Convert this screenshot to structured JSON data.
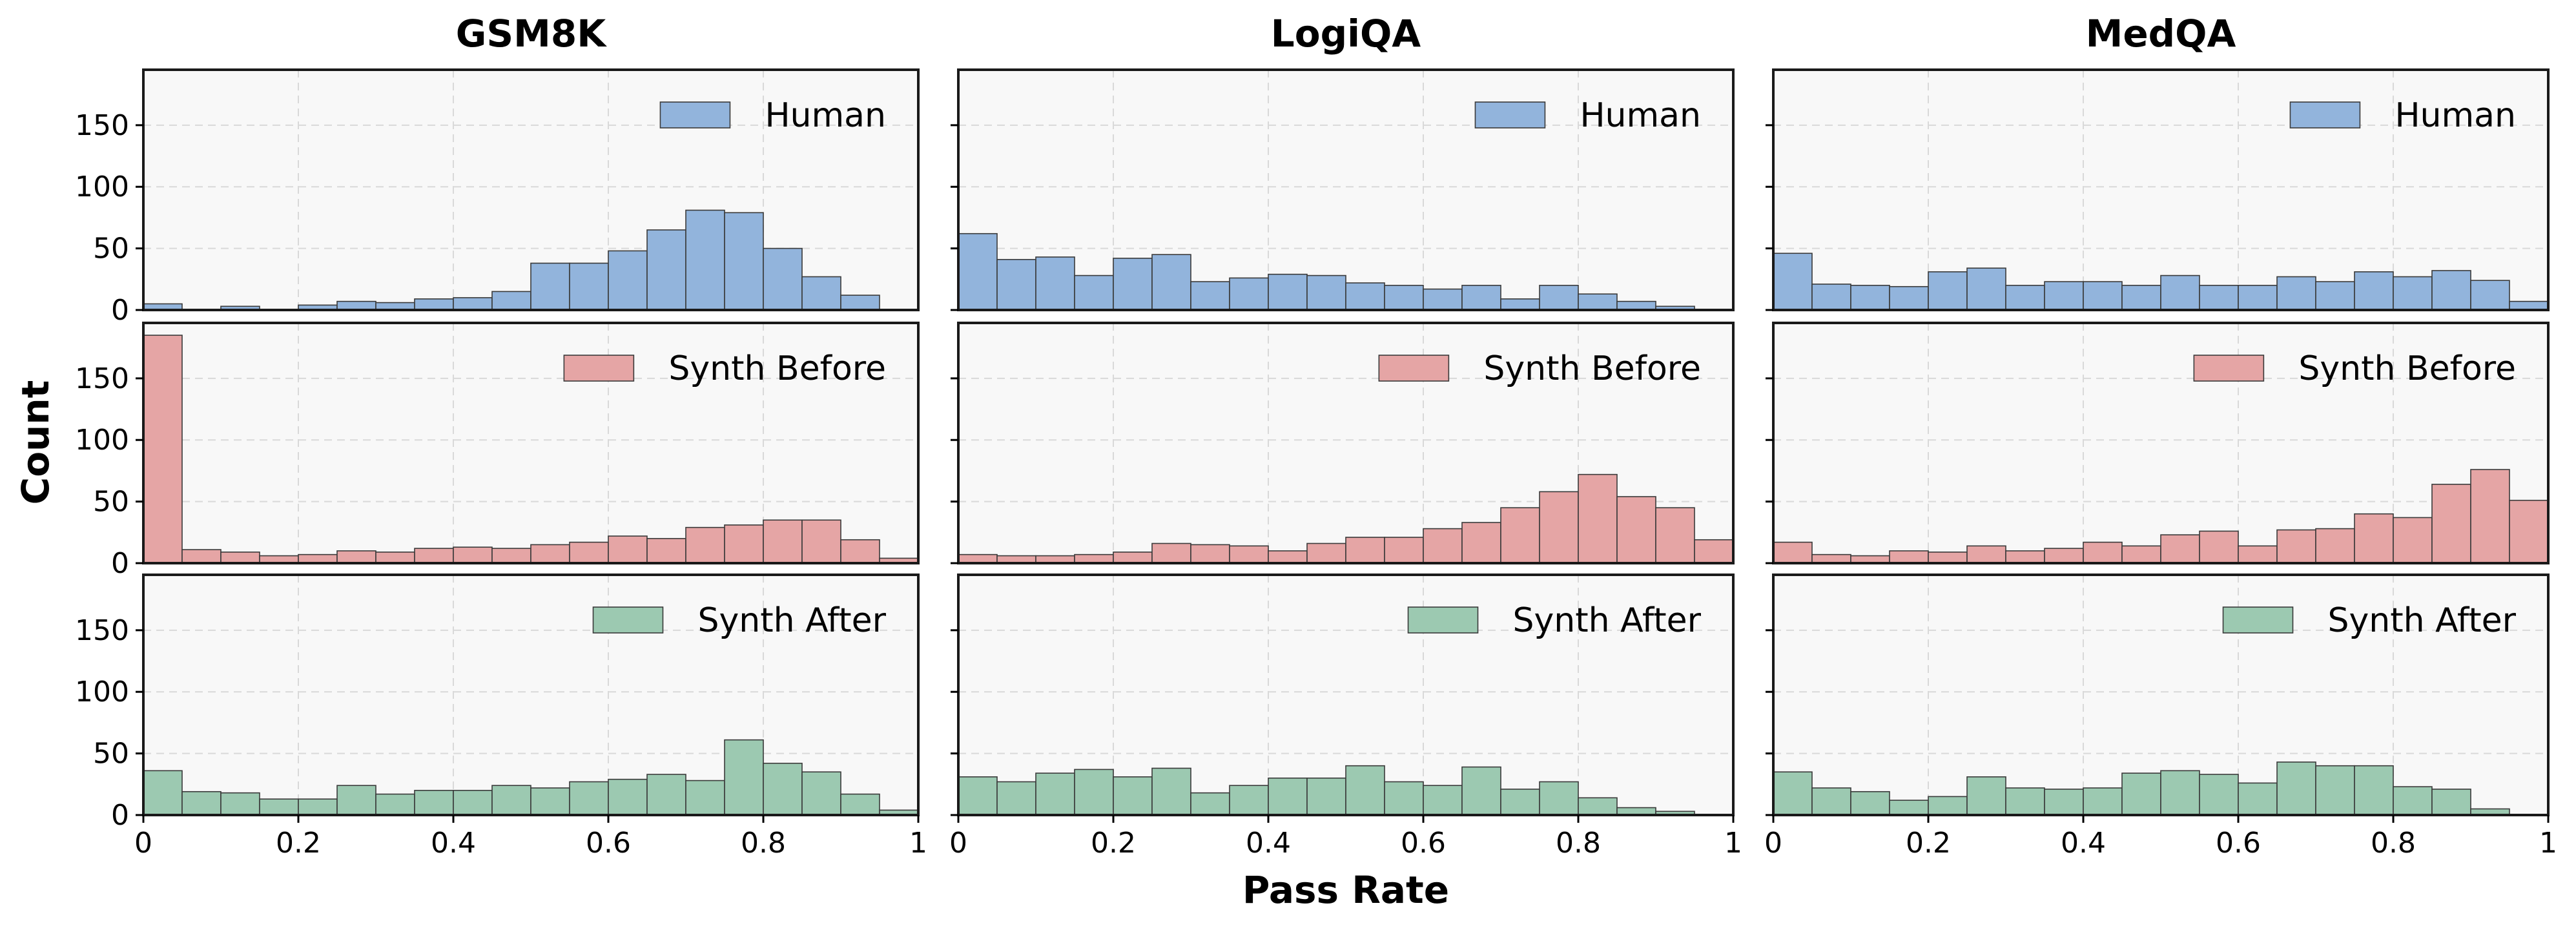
{
  "chart_data": {
    "type": "histogram",
    "layout": "3 rows x 3 columns, shared x and y axes",
    "columns": [
      "GSM8K",
      "LogiQA",
      "MedQA"
    ],
    "xlabel": "Pass Rate",
    "ylabel": "Count",
    "xlim": [
      0,
      1
    ],
    "ylim": [
      0,
      195
    ],
    "xticks": [
      0,
      0.2,
      0.4,
      0.6,
      0.8,
      1
    ],
    "xtick_labels": [
      "0",
      "0.2",
      "0.4",
      "0.6",
      "0.8",
      "1"
    ],
    "yticks": [
      0,
      50,
      100,
      150
    ],
    "bin_width": 0.05,
    "bin_starts": [
      0,
      0.05,
      0.1,
      0.15,
      0.2,
      0.25,
      0.3,
      0.35,
      0.4,
      0.45,
      0.5,
      0.55,
      0.6,
      0.65,
      0.7,
      0.75,
      0.8,
      0.85,
      0.9,
      0.95
    ],
    "grid": true,
    "legend_position": "upper right",
    "series": [
      {
        "name": "Human",
        "color": "#92b4dc"
      },
      {
        "name": "Synth Before",
        "color": "#e5a5a5"
      },
      {
        "name": "Synth After",
        "color": "#9cc9b1"
      }
    ],
    "panels": {
      "GSM8K": {
        "Human": [
          5,
          0,
          3,
          0,
          4,
          7,
          6,
          9,
          10,
          15,
          38,
          38,
          48,
          65,
          81,
          79,
          50,
          27,
          12,
          0
        ],
        "Synth Before": [
          185,
          11,
          9,
          6,
          7,
          10,
          9,
          12,
          13,
          12,
          15,
          17,
          22,
          20,
          29,
          31,
          35,
          35,
          19,
          4
        ],
        "Synth After": [
          36,
          19,
          18,
          13,
          13,
          24,
          17,
          20,
          20,
          24,
          22,
          27,
          29,
          33,
          28,
          61,
          42,
          35,
          17,
          4
        ]
      },
      "LogiQA": {
        "Human": [
          62,
          41,
          43,
          28,
          42,
          45,
          23,
          26,
          29,
          28,
          22,
          20,
          17,
          20,
          9,
          20,
          13,
          7,
          3,
          0
        ],
        "Synth Before": [
          7,
          6,
          6,
          7,
          9,
          16,
          15,
          14,
          10,
          16,
          21,
          21,
          28,
          33,
          45,
          58,
          72,
          54,
          45,
          19
        ],
        "Synth After": [
          31,
          27,
          34,
          37,
          31,
          38,
          18,
          24,
          30,
          30,
          40,
          27,
          24,
          39,
          21,
          27,
          14,
          6,
          3,
          0
        ]
      },
      "MedQA": {
        "Human": [
          46,
          21,
          20,
          19,
          31,
          34,
          20,
          23,
          23,
          20,
          28,
          20,
          20,
          27,
          23,
          31,
          27,
          32,
          24,
          7
        ],
        "Synth Before": [
          17,
          7,
          6,
          10,
          9,
          14,
          10,
          12,
          17,
          14,
          23,
          26,
          14,
          27,
          28,
          40,
          37,
          64,
          76,
          51
        ],
        "Synth After": [
          35,
          22,
          19,
          12,
          15,
          31,
          22,
          21,
          22,
          34,
          36,
          33,
          26,
          43,
          40,
          40,
          23,
          21,
          5,
          0
        ]
      }
    }
  }
}
